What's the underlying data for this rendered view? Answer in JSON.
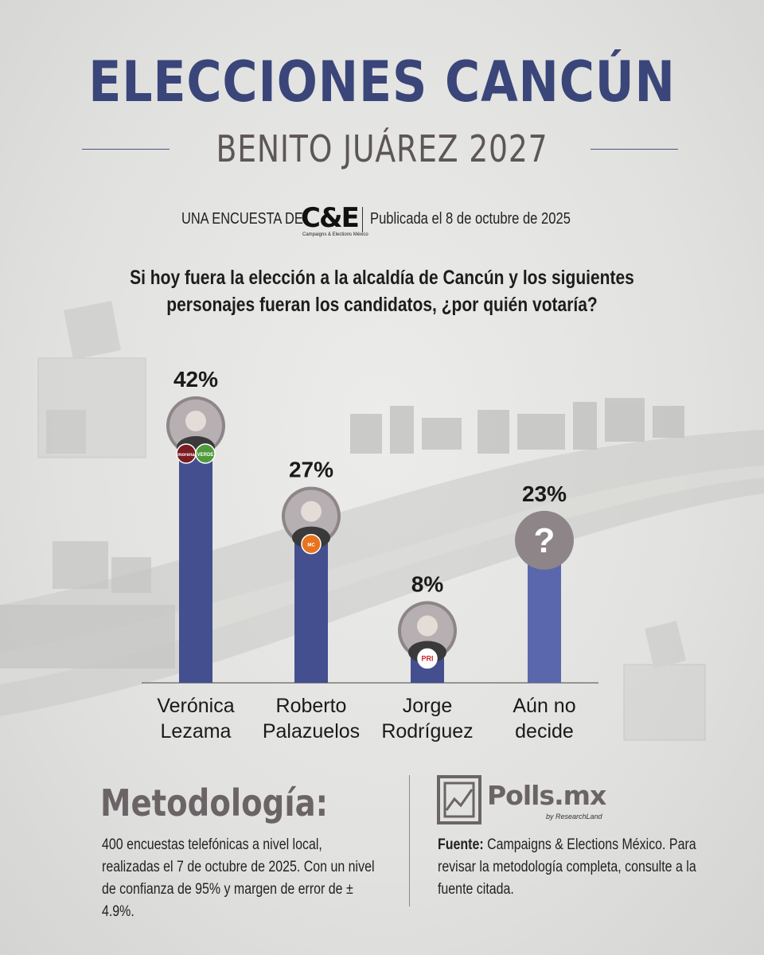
{
  "header": {
    "title": "ELECCIONES CANCÚN",
    "subtitle": "BENITO JUÁREZ 2027"
  },
  "byline": {
    "label": "UNA ENCUESTA DE:",
    "logo_text": "C&E",
    "logo_subtext": "Campaigns & Elections México",
    "published": "Publicada el 8 de octubre de 2025"
  },
  "question": {
    "line1": "Si hoy fuera la elección a la alcaldía de Cancún y los siguientes",
    "line2": "personajes fueran los candidatos, ¿por quién votaría?"
  },
  "chart_data": {
    "type": "bar",
    "categories": [
      "Verónica Lezama",
      "Roberto Palazuelos",
      "Jorge Rodríguez",
      "Aún no decide"
    ],
    "category_lines": [
      [
        "Verónica",
        "Lezama"
      ],
      [
        "Roberto",
        "Palazuelos"
      ],
      [
        "Jorge",
        "Rodríguez"
      ],
      [
        "Aún no",
        "decide"
      ]
    ],
    "values": [
      42,
      27,
      8,
      23
    ],
    "value_labels": [
      "42%",
      "27%",
      "8%",
      "23%"
    ],
    "bar_colors": [
      "#434f8f",
      "#434f8f",
      "#434f8f",
      "#5a67ad"
    ],
    "party_badges": [
      [
        "morena",
        "VERDE"
      ],
      [
        "MC"
      ],
      [
        "PRI"
      ],
      []
    ],
    "undecided_symbol": "?",
    "ylim": [
      0,
      42
    ],
    "grid": false,
    "legend": "none"
  },
  "methodology": {
    "title": "Metodología:",
    "text": "400 encuestas telefónicas a nivel local, realizadas el 7 de octubre de 2025. Con un nivel de confianza de 95% y margen de error de ± 4.9%."
  },
  "source": {
    "brand": "Polls.mx",
    "brand_sub": "by ResearchLand",
    "label": "Fuente:",
    "text": "Campaigns & Elections México. Para revisar la metodología completa, consulte a la fuente citada."
  },
  "colors": {
    "title": "#3a4679",
    "subtitle": "#5d5658",
    "bar": "#434f8f",
    "morena": "#7a1c22",
    "verde": "#4f9a3c",
    "mc": "#e8731e",
    "pri_red": "#cc2229",
    "pri_green": "#1f8a3b"
  }
}
